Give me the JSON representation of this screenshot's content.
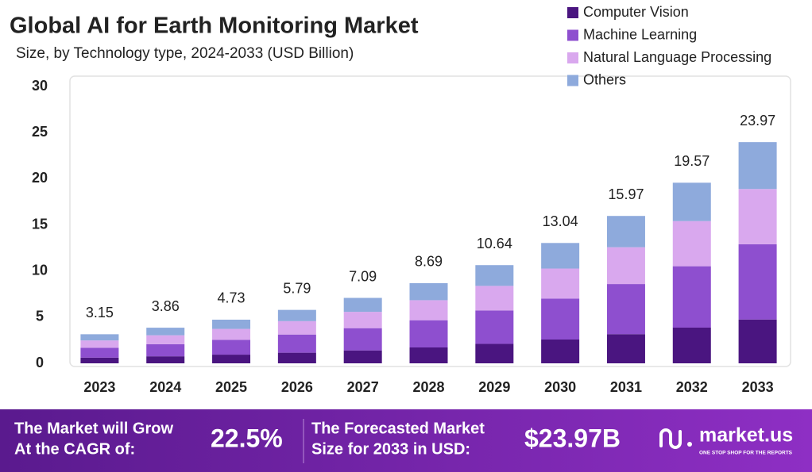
{
  "chart_data": {
    "type": "stacked_bar",
    "title": "Global AI for Earth Monitoring Market",
    "subtitle": "Size, by Technology type, 2024-2033 (USD Billion)",
    "categories": [
      "2023",
      "2024",
      "2025",
      "2026",
      "2027",
      "2028",
      "2029",
      "2030",
      "2031",
      "2032",
      "2033"
    ],
    "series": [
      {
        "name": "Computer Vision",
        "color": "#4a1580",
        "values": [
          0.62,
          0.76,
          0.94,
          1.15,
          1.4,
          1.72,
          2.11,
          2.58,
          3.16,
          3.87,
          4.75
        ]
      },
      {
        "name": "Machine Learning",
        "color": "#8e4fcf",
        "values": [
          1.07,
          1.31,
          1.61,
          1.97,
          2.41,
          2.95,
          3.62,
          4.43,
          5.43,
          6.65,
          8.15
        ]
      },
      {
        "name": "Natural Language Processing",
        "color": "#d9a8ee",
        "values": [
          0.79,
          0.97,
          1.18,
          1.45,
          1.77,
          2.17,
          2.66,
          3.26,
          3.99,
          4.89,
          5.99
        ]
      },
      {
        "name": "Others",
        "color": "#8eaadc",
        "values": [
          0.67,
          0.82,
          1.0,
          1.22,
          1.51,
          1.85,
          2.25,
          2.77,
          3.39,
          4.16,
          5.08
        ]
      }
    ],
    "totals": [
      3.15,
      3.86,
      4.73,
      5.79,
      7.09,
      8.69,
      10.64,
      13.04,
      15.97,
      19.57,
      23.97
    ],
    "ylim": [
      0,
      30
    ],
    "yticks": [
      0,
      5,
      10,
      15,
      20,
      25,
      30
    ],
    "grid": false,
    "legend": "top-right"
  },
  "footer": {
    "grow_line1": "The Market will Grow",
    "grow_line2": "At the CAGR of:",
    "cagr": "22.5%",
    "forecast_line1": "The Forecasted Market",
    "forecast_line2": "Size for 2033 in USD:",
    "forecast": "$23.97B",
    "brand": "market.us",
    "tagline": "ONE STOP SHOP FOR THE REPORTS"
  }
}
